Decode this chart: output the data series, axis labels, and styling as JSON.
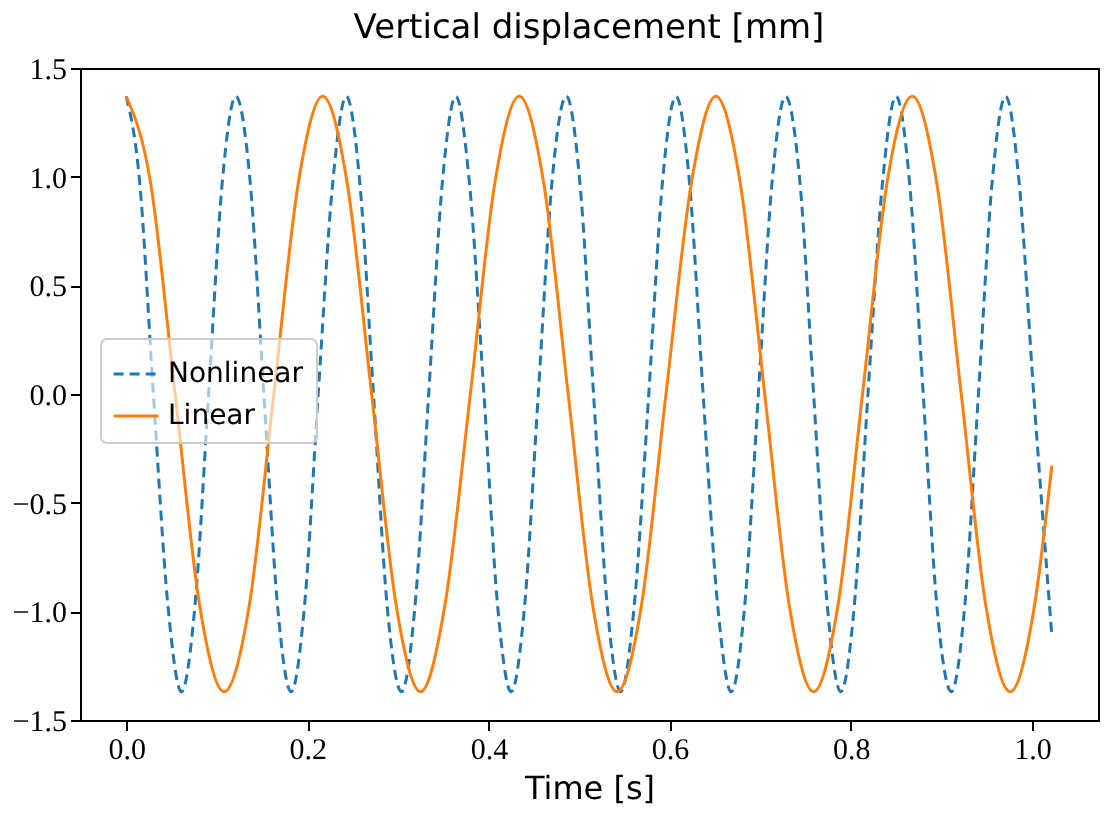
{
  "chart_data": {
    "type": "line",
    "title": "Vertical displacement [mm]",
    "xlabel": "Time [s]",
    "xlim": [
      -0.051,
      1.073
    ],
    "xticks": [
      {
        "value": 0,
        "label": "0.0"
      },
      0.2,
      0.4,
      0.6,
      0.8,
      {
        "value": 1,
        "label": "1.0"
      }
    ],
    "ylim": [
      -1.5,
      1.5
    ],
    "yticks": [
      {
        "value": -1.5,
        "label": "−1.5"
      },
      {
        "value": -1,
        "label": "−1.0"
      },
      {
        "value": -0.5,
        "label": "−0.5"
      },
      {
        "value": 0,
        "label": "0.0"
      },
      0.5,
      {
        "value": 1,
        "label": "1.0"
      },
      1.5
    ],
    "grid": false,
    "legend": "left",
    "marker": "none",
    "series": [
      {
        "name": "Nonlinear",
        "color": "#1f77b4",
        "line_style": "dashed",
        "x": [
          0,
          0.015,
          0.03,
          0.046,
          0.061,
          0.076,
          0.091,
          0.106,
          0.121,
          0.137,
          0.152,
          0.167,
          0.182,
          0.197,
          0.212,
          0.228,
          0.243,
          0.258,
          0.273,
          0.288,
          0.304,
          0.319,
          0.334,
          0.349,
          0.364,
          0.379,
          0.395,
          0.41,
          0.425,
          0.44,
          0.455,
          0.47,
          0.486,
          0.501,
          0.516,
          0.531,
          0.546,
          0.561,
          0.577,
          0.592,
          0.607,
          0.622,
          0.637,
          0.653,
          0.668,
          0.683,
          0.698,
          0.713,
          0.728,
          0.744,
          0.759,
          0.774,
          0.789,
          0.804,
          0.819,
          0.835,
          0.85,
          0.865,
          0.88,
          0.895,
          0.911,
          0.926,
          0.941,
          0.956,
          0.971,
          0.986,
          1.002,
          1.022
        ],
        "values": [
          1.37,
          0.97,
          0,
          -0.97,
          -1.37,
          -0.97,
          0,
          0.97,
          1.37,
          0.97,
          0,
          -0.97,
          -1.37,
          -0.97,
          0,
          0.97,
          1.37,
          0.97,
          0,
          -0.97,
          -1.37,
          -0.97,
          0,
          0.97,
          1.37,
          0.97,
          0,
          -0.97,
          -1.37,
          -0.97,
          0,
          0.97,
          1.37,
          0.97,
          0,
          -0.97,
          -1.37,
          -0.97,
          0,
          0.97,
          1.37,
          0.97,
          0,
          -0.97,
          -1.37,
          -0.97,
          0,
          0.97,
          1.37,
          0.97,
          0,
          -0.97,
          -1.37,
          -0.97,
          0,
          0.97,
          1.37,
          0.97,
          0,
          -0.97,
          -1.37,
          -0.97,
          0,
          0.97,
          1.37,
          0.97,
          0,
          -1.11
        ]
      },
      {
        "name": "Linear",
        "color": "#ff7f0e",
        "line_style": "solid",
        "x": [
          0,
          0.027,
          0.054,
          0.081,
          0.108,
          0.136,
          0.163,
          0.19,
          0.217,
          0.244,
          0.271,
          0.298,
          0.325,
          0.352,
          0.38,
          0.407,
          0.434,
          0.461,
          0.488,
          0.515,
          0.542,
          0.569,
          0.596,
          0.624,
          0.651,
          0.678,
          0.705,
          0.732,
          0.759,
          0.786,
          0.813,
          0.84,
          0.868,
          0.895,
          0.922,
          0.949,
          0.976,
          1.003,
          1.022
        ],
        "values": [
          1.37,
          0.97,
          0,
          -0.97,
          -1.37,
          -0.97,
          0,
          0.97,
          1.37,
          0.97,
          0,
          -0.97,
          -1.37,
          -0.97,
          0,
          0.97,
          1.37,
          0.97,
          0,
          -0.97,
          -1.37,
          -0.97,
          0,
          0.97,
          1.37,
          0.97,
          0,
          -0.97,
          -1.37,
          -0.97,
          0,
          0.97,
          1.37,
          0.97,
          0,
          -0.97,
          -1.37,
          -0.97,
          -0.33
        ]
      }
    ]
  }
}
